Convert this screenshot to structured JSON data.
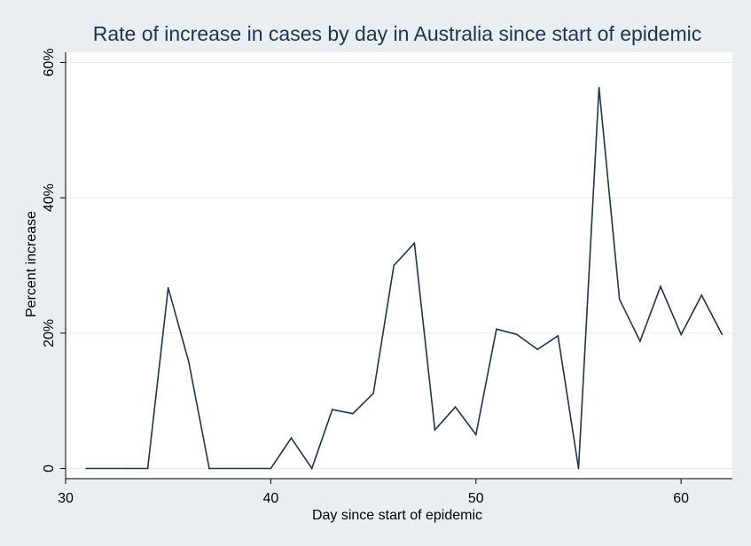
{
  "chart_data": {
    "type": "line",
    "title": "Rate of increase in cases by day in Australia since start of epidemic",
    "xlabel": "Day since start of epidemic",
    "ylabel": "Percent increase",
    "xlim": [
      30,
      62.5
    ],
    "ylim": [
      -1.5,
      61.5
    ],
    "xticks": [
      30,
      40,
      50,
      60
    ],
    "yticks": [
      0,
      20,
      40,
      60
    ],
    "ytick_labels": [
      "0",
      "20%",
      "40%",
      "60%"
    ],
    "grid": true,
    "legend": "none",
    "colors": {
      "series": "#1e3551",
      "background": "#e9eef3",
      "plot_background": "#ffffff",
      "grid": "#e6eaee"
    },
    "series": [
      {
        "x": [
          31,
          32,
          33,
          34,
          35,
          36,
          37,
          38,
          39,
          40,
          41,
          42,
          43,
          44,
          45,
          46,
          47,
          48,
          49,
          50,
          51,
          52,
          53,
          54,
          55,
          56,
          57,
          58,
          59,
          60,
          61,
          62
        ],
        "values": [
          0,
          0,
          0,
          0,
          26.7,
          15.8,
          0,
          0,
          0,
          0,
          4.5,
          0,
          8.7,
          8.1,
          11.1,
          30,
          33.3,
          5.7,
          9.1,
          5,
          20.6,
          19.8,
          17.6,
          19.6,
          0,
          56.3,
          25,
          18.8,
          26.9,
          19.8,
          25.6,
          19.8
        ]
      }
    ]
  }
}
